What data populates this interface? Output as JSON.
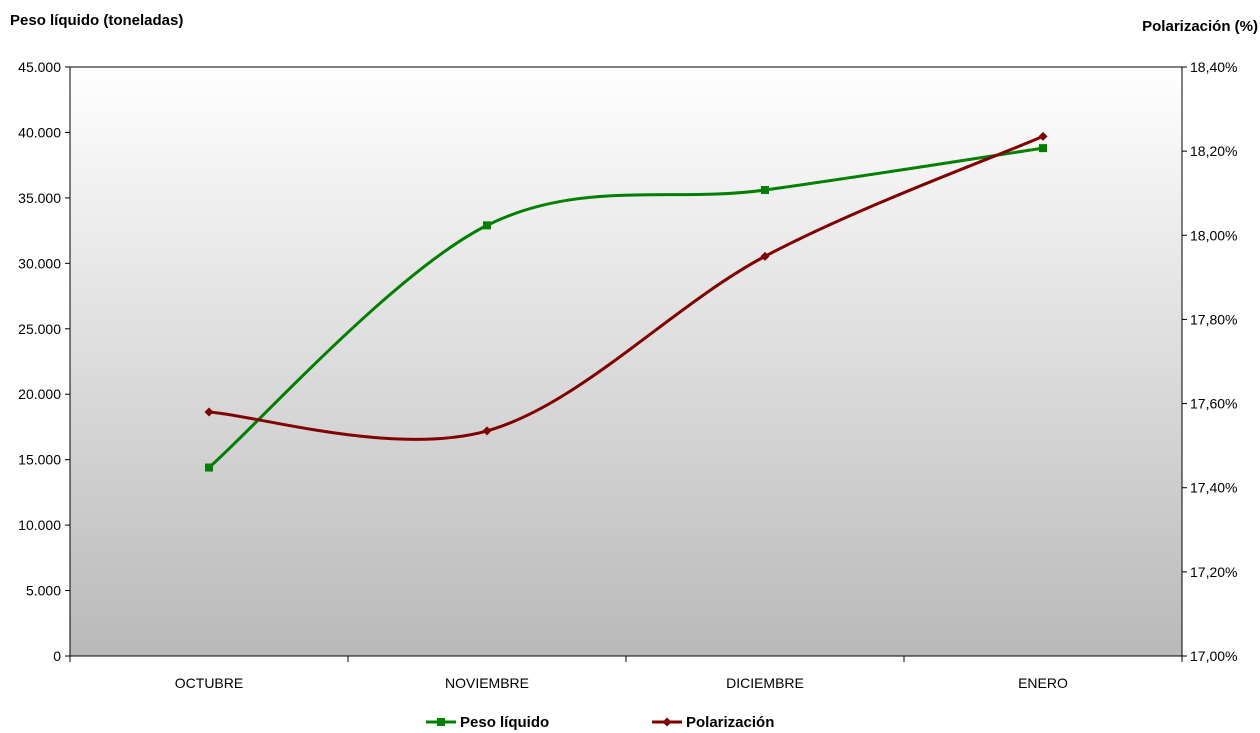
{
  "chart_data": {
    "type": "line",
    "categories": [
      "OCTUBRE",
      "NOVIEMBRE",
      "DICIEMBRE",
      "ENERO"
    ],
    "y_left": {
      "label": "Peso líquido (toneladas)",
      "lim": [
        0,
        45000
      ],
      "ticks": [
        0,
        5000,
        10000,
        15000,
        20000,
        25000,
        30000,
        35000,
        40000,
        45000
      ],
      "tick_labels": [
        "0",
        "5.000",
        "10.000",
        "15.000",
        "20.000",
        "25.000",
        "30.000",
        "35.000",
        "40.000",
        "45.000"
      ]
    },
    "y_right": {
      "label": "Polarización (%)",
      "lim": [
        17.0,
        18.4
      ],
      "ticks": [
        17.0,
        17.2,
        17.4,
        17.6,
        17.8,
        18.0,
        18.2,
        18.4
      ],
      "tick_labels": [
        "17,00%",
        "17,20%",
        "17,40%",
        "17,60%",
        "17,80%",
        "18,00%",
        "18,20%",
        "18,40%"
      ]
    },
    "series": [
      {
        "name": "Peso líquido",
        "axis": "left",
        "color": "#008000",
        "marker": "square",
        "values": [
          14400,
          32900,
          35600,
          38800
        ]
      },
      {
        "name": "Polarización",
        "axis": "right",
        "color": "#800000",
        "marker": "diamond",
        "values": [
          17.58,
          17.535,
          17.95,
          18.235
        ]
      }
    ],
    "smooth": true,
    "grid": false,
    "background": "gradient-white-to-gray",
    "legend_position": "bottom-center"
  }
}
